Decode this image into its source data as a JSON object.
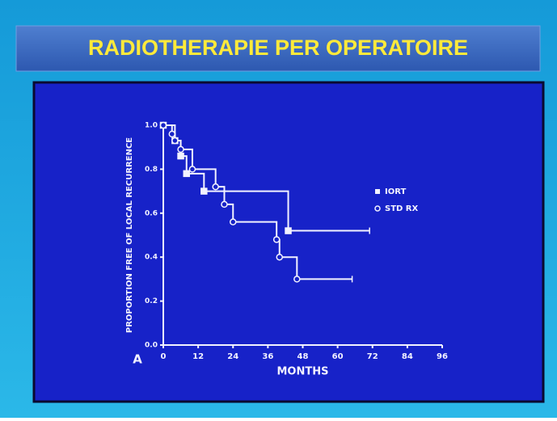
{
  "chart_data": {
    "type": "line",
    "step": "post",
    "title": "RADIOTHERAPIE PER OPERATOIRE",
    "panel_label": "A",
    "x_label": "MONTHS",
    "y_label": "PROPORTION FREE OF LOCAL RECURRENCE",
    "xlim": [
      0,
      96
    ],
    "xticks": [
      0,
      12,
      24,
      36,
      48,
      60,
      72,
      84,
      96
    ],
    "ylim": [
      0,
      1
    ],
    "yticks": [
      {
        "value": 0,
        "label": "0.0"
      },
      0.2,
      0.4,
      0.6,
      0.8,
      {
        "value": 1,
        "label": "1.0"
      }
    ],
    "legend": "right",
    "series": [
      {
        "name": "IORT",
        "color": "#f2f2ff",
        "marker": "square",
        "x": [
          0,
          4,
          6,
          8,
          14,
          43,
          71
        ],
        "values": [
          1,
          0.93,
          0.86,
          0.78,
          0.7,
          0.52,
          0.52
        ]
      },
      {
        "name": "STD RX",
        "color": "#f2f2ff",
        "marker": "circle",
        "x": [
          0,
          3,
          4,
          6,
          10,
          18,
          21,
          24,
          39,
          40,
          46,
          65
        ],
        "values": [
          1,
          0.96,
          0.93,
          0.89,
          0.8,
          0.72,
          0.64,
          0.56,
          0.48,
          0.4,
          0.3,
          0.3
        ]
      }
    ]
  }
}
